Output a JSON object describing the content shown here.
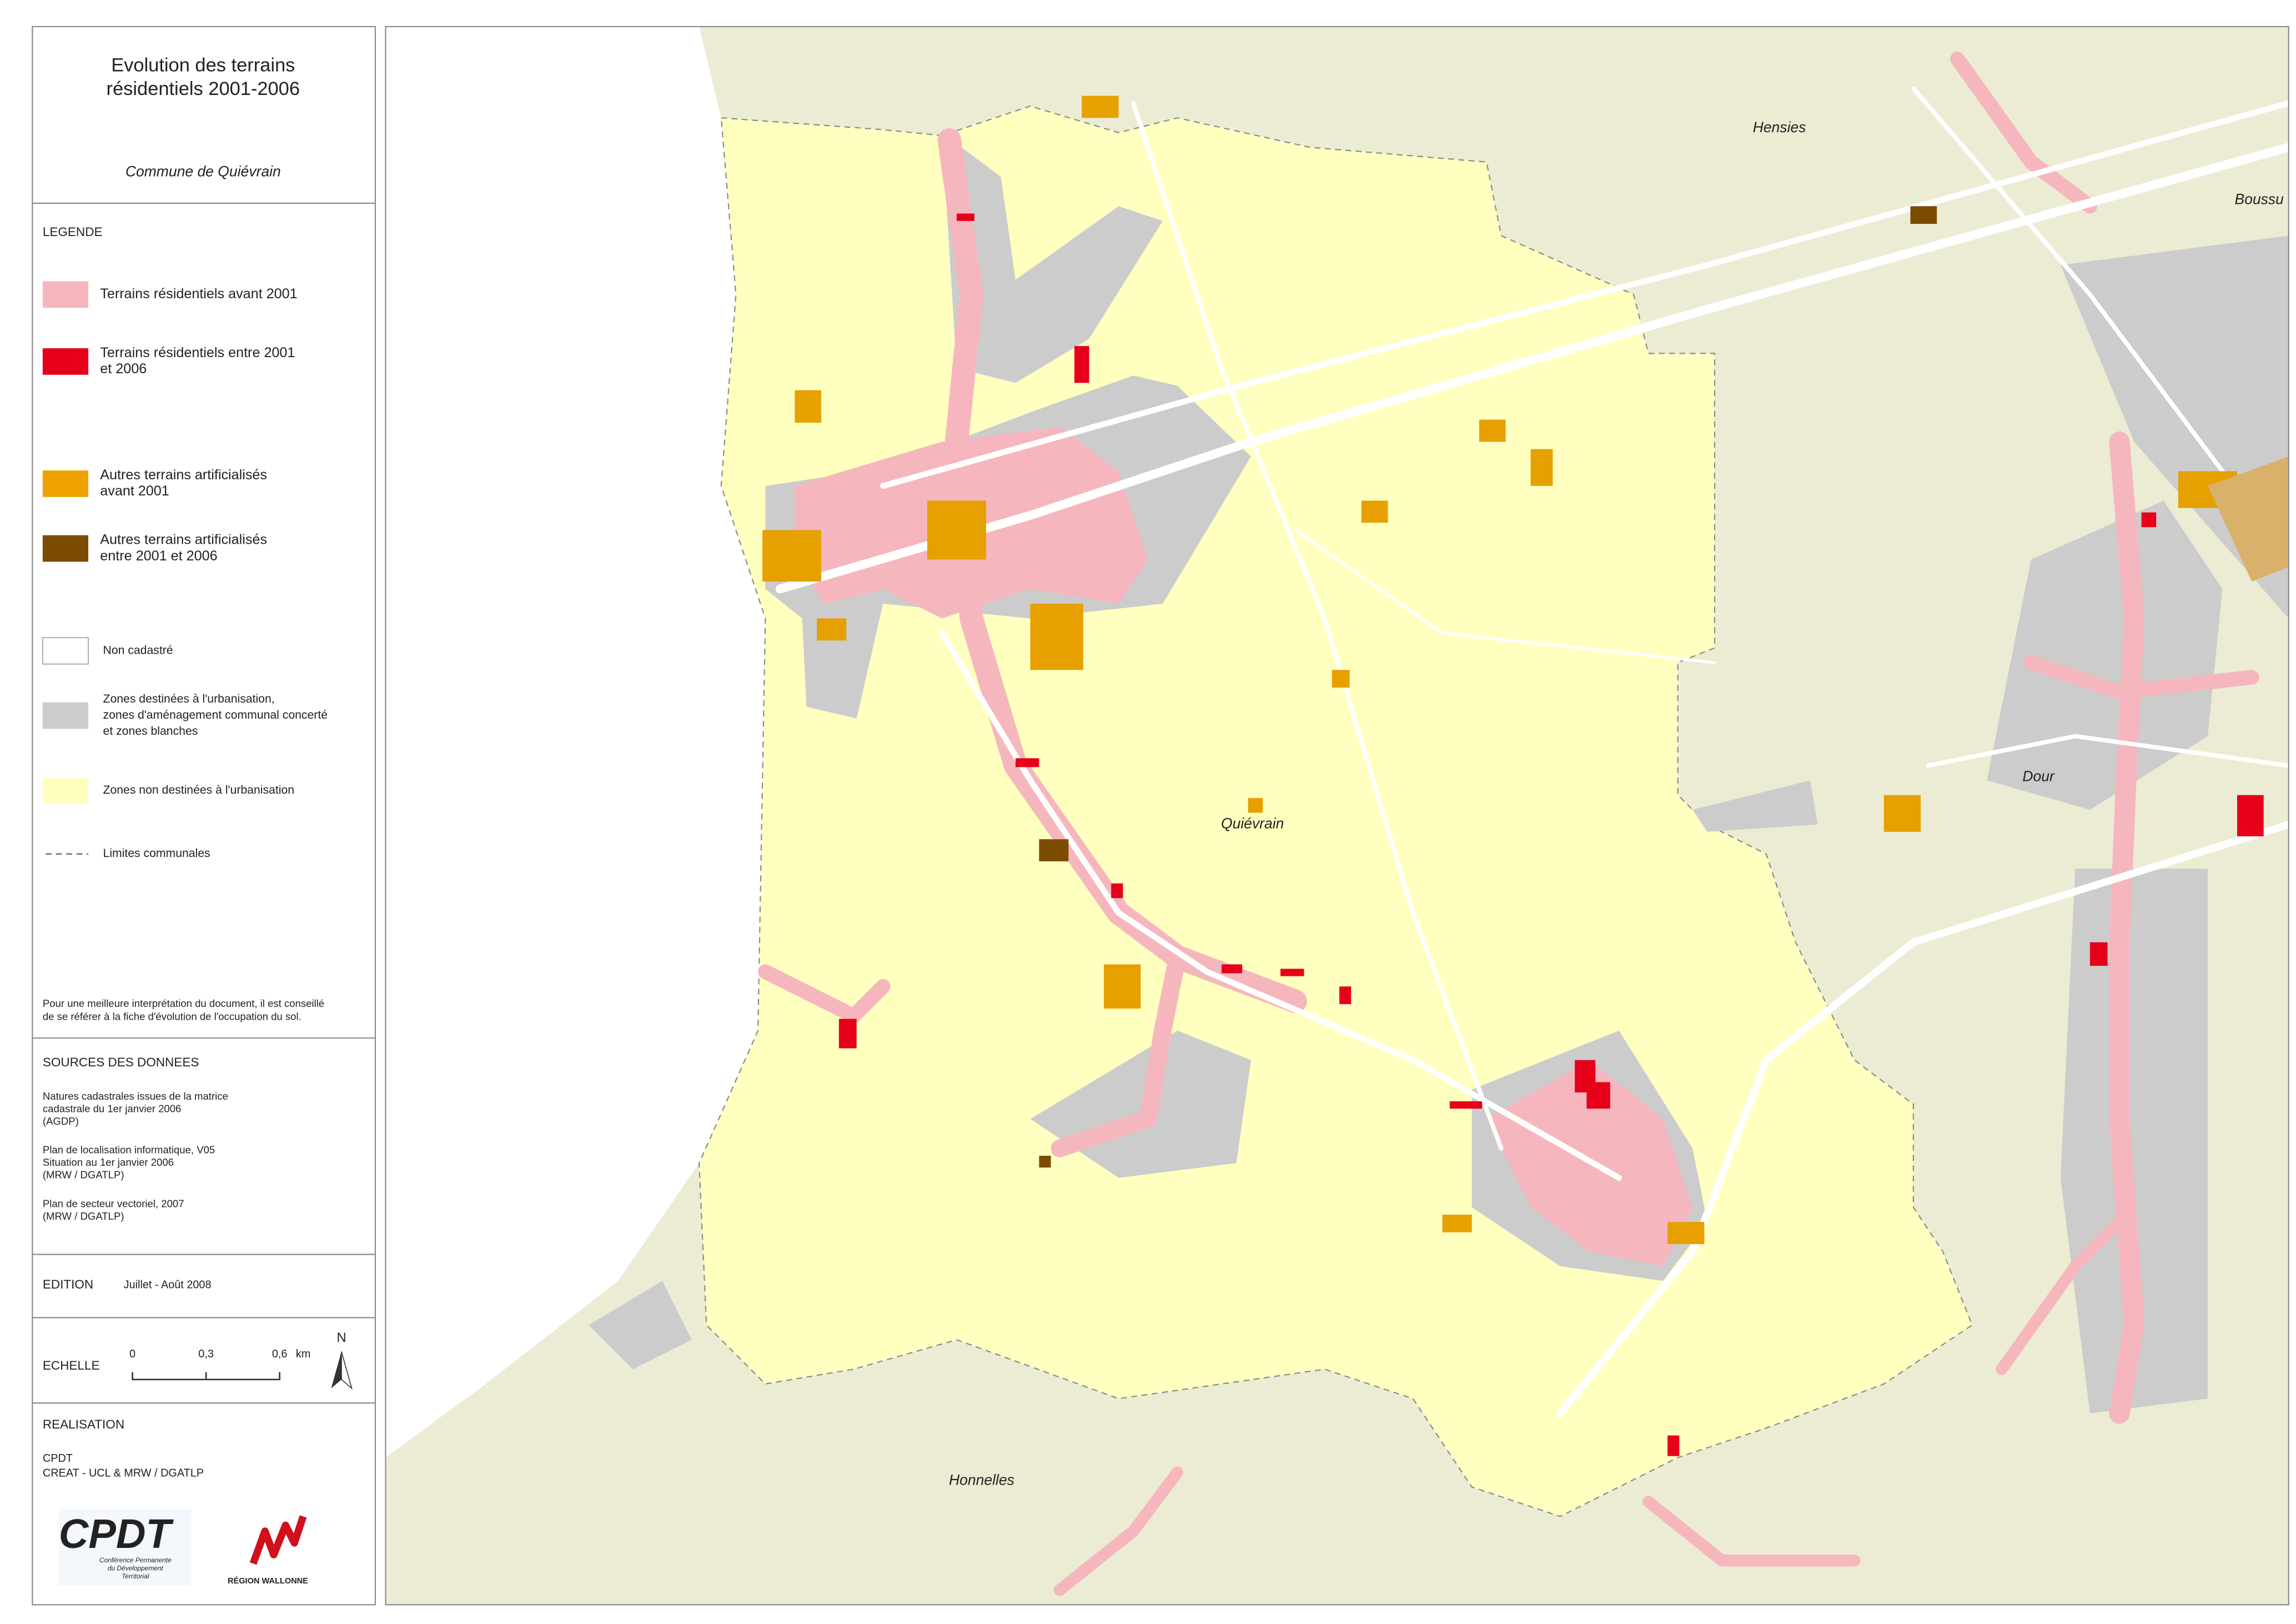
{
  "header": {
    "title_lines": [
      "Evolution des terrains",
      "résidentiels 2001-2006"
    ],
    "subtitle": "Commune de Quiévrain"
  },
  "legend": {
    "heading": "LEGENDE",
    "items": [
      {
        "lines": [
          "Terrains résidentiels avant 2001"
        ],
        "color": "#f6b6bd",
        "kind": "swatch"
      },
      {
        "lines": [
          "Terrains résidentiels entre 2001",
          "et 2006"
        ],
        "color": "#e6001a",
        "kind": "swatch"
      },
      {
        "lines": [
          "Autres terrains artificialisés",
          "avant 2001"
        ],
        "color": "#efa200",
        "kind": "swatch"
      },
      {
        "lines": [
          "Autres terrains artificialisés",
          "entre 2001 et 2006"
        ],
        "color": "#7b4b00",
        "kind": "swatch"
      },
      {
        "lines": [
          "Non cadastré"
        ],
        "color": "#ffffff",
        "kind": "swatch"
      },
      {
        "lines": [
          "Zones destinées à l'urbanisation,",
          "zones d'aménagement communal concerté",
          "et zones blanches"
        ],
        "color": "#cccccc",
        "kind": "swatch"
      },
      {
        "lines": [
          "Zones non destinées à l'urbanisation"
        ],
        "color": "#ffffc0",
        "kind": "swatch"
      },
      {
        "lines": [
          "Limites communales"
        ],
        "color": "#777777",
        "kind": "dashed"
      }
    ],
    "note_lines": [
      "Pour une meilleure interprétation du document, il est conseillé",
      "de se référer à la fiche d'évolution de l'occupation du sol."
    ]
  },
  "sources": {
    "heading": "SOURCES DES DONNEES",
    "blocks": [
      [
        "Natures cadastrales issues de la matrice",
        "cadastrale du 1er janvier 2006",
        "(AGDP)"
      ],
      [
        "Plan de localisation informatique, V05",
        "Situation au 1er janvier 2006",
        "(MRW / DGATLP)"
      ],
      [
        "Plan de secteur vectoriel, 2007",
        "(MRW / DGATLP)"
      ]
    ]
  },
  "edition": {
    "label": "EDITION",
    "value": "Juillet - Août 2008"
  },
  "scale": {
    "label": "ECHELLE",
    "ticks": [
      "0",
      "0,3",
      "0,6"
    ],
    "unit": "km",
    "north": "N"
  },
  "realisation": {
    "heading": "REALISATION",
    "lines": [
      "CPDT",
      "CREAT - UCL & MRW / DGATLP"
    ],
    "cpdt_logo": "CPDT",
    "cpdt_caption": [
      "Conférence Permanente",
      "du Développement",
      "Territorial"
    ],
    "region_logo": "RÉGION WALLONNE"
  },
  "map": {
    "places": [
      "Hensies",
      "Boussu",
      "Dour",
      "Quiévrain",
      "Honnelles"
    ]
  }
}
